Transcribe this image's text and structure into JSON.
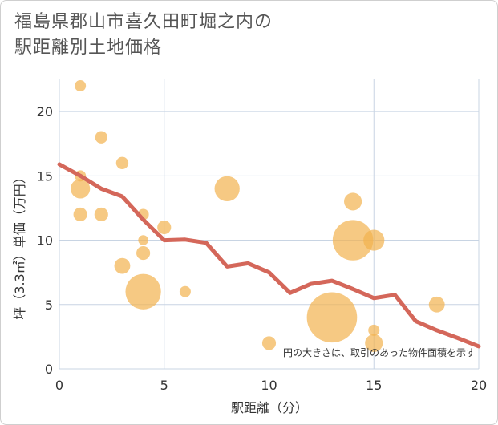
{
  "chart_data": {
    "type": "scatter",
    "title_line1": "福島県郡山市喜久田町堀之内の",
    "title_line2": "駅距離別土地価格",
    "xlabel": "駅距離（分）",
    "ylabel": "坪（3.3㎡）単価（万円）",
    "xlim": [
      0,
      20
    ],
    "ylim": [
      0,
      22.5
    ],
    "xticks": [
      "0",
      "5",
      "10",
      "15",
      "20"
    ],
    "yticks": [
      "0",
      "5",
      "10",
      "15",
      "20"
    ],
    "note": "円の大きさは、取引のあった物件面積を示す",
    "colors": {
      "bubble": "#f2b24e",
      "line": "#d4675a",
      "grid": "#c8d4e3"
    },
    "bubbles": [
      {
        "x": 1,
        "y": 22,
        "s": 1
      },
      {
        "x": 1,
        "y": 15,
        "s": 1
      },
      {
        "x": 1,
        "y": 14,
        "s": 3
      },
      {
        "x": 1,
        "y": 12,
        "s": 1.5
      },
      {
        "x": 2,
        "y": 18,
        "s": 1.2
      },
      {
        "x": 2,
        "y": 12,
        "s": 1.5
      },
      {
        "x": 3,
        "y": 16,
        "s": 1.2
      },
      {
        "x": 3,
        "y": 8,
        "s": 2
      },
      {
        "x": 4,
        "y": 12,
        "s": 1
      },
      {
        "x": 4,
        "y": 10,
        "s": 0.8
      },
      {
        "x": 4,
        "y": 9,
        "s": 1.5
      },
      {
        "x": 4,
        "y": 6,
        "s": 10
      },
      {
        "x": 5,
        "y": 11,
        "s": 1.5
      },
      {
        "x": 6,
        "y": 6,
        "s": 1
      },
      {
        "x": 8,
        "y": 14,
        "s": 5
      },
      {
        "x": 10,
        "y": 2,
        "s": 1.5
      },
      {
        "x": 13,
        "y": 4,
        "s": 20
      },
      {
        "x": 14,
        "y": 13,
        "s": 2.5
      },
      {
        "x": 14,
        "y": 10,
        "s": 13
      },
      {
        "x": 15,
        "y": 10,
        "s": 3.5
      },
      {
        "x": 15,
        "y": 3,
        "s": 1
      },
      {
        "x": 15,
        "y": 2,
        "s": 2.5
      },
      {
        "x": 18,
        "y": 5,
        "s": 2
      }
    ],
    "trend": {
      "x": [
        0,
        1,
        2,
        3,
        4,
        5,
        6,
        7,
        8,
        9,
        10,
        11,
        12,
        13,
        14,
        15,
        16,
        17,
        18,
        19,
        20
      ],
      "y": [
        15.9,
        15.0,
        14.0,
        13.4,
        11.6,
        10.0,
        10.05,
        9.8,
        7.95,
        8.2,
        7.5,
        5.9,
        6.6,
        6.85,
        6.2,
        5.5,
        5.75,
        3.7,
        3.0,
        2.4,
        1.75
      ]
    }
  }
}
